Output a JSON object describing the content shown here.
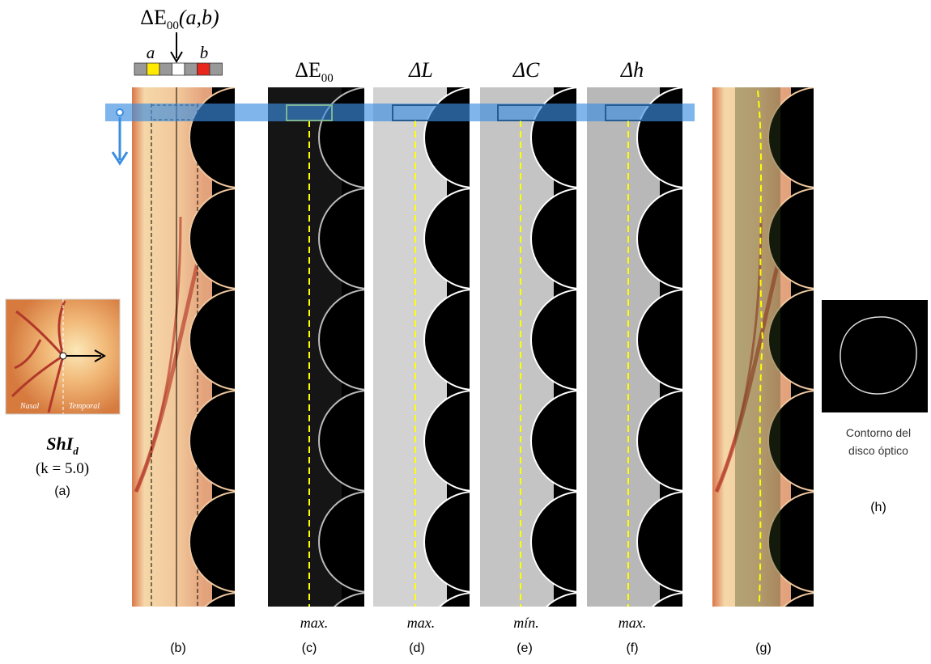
{
  "header": {
    "symbol": "ΔE",
    "symbol_sub": "00",
    "args": "(a,b)",
    "swatch_a": "a",
    "swatch_b": "b"
  },
  "thumbnail": {
    "nasal": "Nasal",
    "temporal": "Temporal",
    "name": "ShI",
    "name_sub": "d",
    "param": "(k = 5.0)"
  },
  "columns": [
    {
      "title": "ΔE",
      "title_sub": "00",
      "note": "max."
    },
    {
      "title": "ΔL",
      "note": "max."
    },
    {
      "title": "ΔC",
      "note": "mín."
    },
    {
      "title": "Δh",
      "note": "max."
    }
  ],
  "contour_caption": [
    "Contorno del",
    "disco óptico"
  ],
  "labels": [
    "(a)",
    "(b)",
    "(c)",
    "(d)",
    "(e)",
    "(f)",
    "(g)",
    "(h)"
  ]
}
